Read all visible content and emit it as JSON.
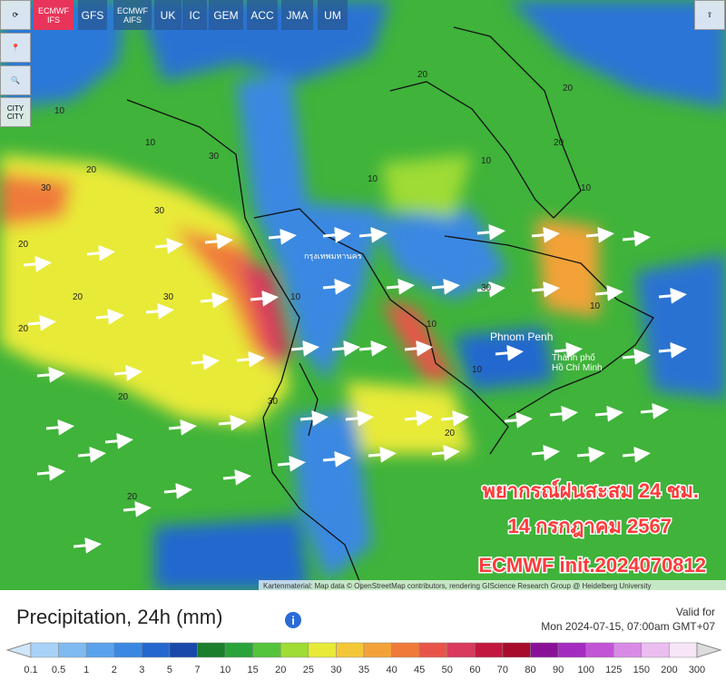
{
  "toolbar": {
    "models": [
      "ECMWF\nIFS",
      "GFS",
      "ECMWF\nAIFS",
      "UK",
      "IC",
      "GEM",
      "ACC",
      "JMA",
      "UM"
    ],
    "city": "CITY\nCITY"
  },
  "map": {
    "places": [
      "Phnom Penh",
      "Thành phố\nHồ Chí Minh",
      "กรุงเทพมหานคร"
    ],
    "contour_labels": [
      "20",
      "30",
      "20",
      "30",
      "30",
      "20",
      "30",
      "20",
      "20",
      "10",
      "10",
      "20",
      "10",
      "10",
      "20",
      "30",
      "10",
      "10",
      "20",
      "10",
      "20",
      "30",
      "10",
      "10",
      "20"
    ],
    "overlay": [
      "พยากรณ์ฝนสะสม 24 ชม.",
      "14 กรกฎาคม 2567",
      "ECMWF init.2024070812"
    ],
    "attribution": "Kartenmaterial: Map data © OpenStreetMap contributors, rendering GIScience Research Group @ Heidelberg University"
  },
  "legend": {
    "title": "Precipitation, 24h (mm)",
    "valid_label": "Valid for",
    "valid_time": "Mon 2024-07-15, 07:00am GMT+07",
    "levels": [
      0.1,
      0.5,
      1,
      2,
      3,
      5,
      7,
      10,
      15,
      20,
      25,
      30,
      35,
      40,
      45,
      50,
      60,
      70,
      80,
      90,
      100,
      125,
      150,
      200,
      300
    ],
    "colors": [
      "#cfe6fb",
      "#a8d2f7",
      "#7fbaf1",
      "#5aa2ec",
      "#3b88e2",
      "#2367cf",
      "#1848ab",
      "#1a7e2c",
      "#2aa33a",
      "#54c43a",
      "#9fdc35",
      "#e8ea38",
      "#f4c737",
      "#f3a238",
      "#f07a3a",
      "#e9544a",
      "#d93a5e",
      "#c2173f",
      "#a80b2b",
      "#8a1197",
      "#a42bc0",
      "#c254d6",
      "#d98ae6",
      "#ecbdf1",
      "#f7e6f8",
      "#dcdcdc"
    ]
  }
}
